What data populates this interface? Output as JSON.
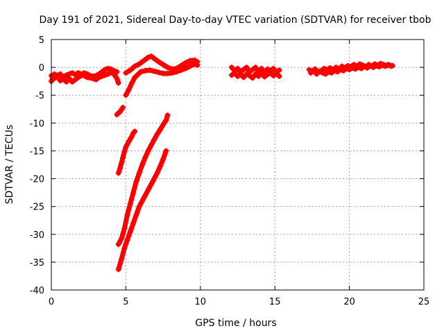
{
  "chart_data": {
    "type": "scatter",
    "title": "Day 191 of 2021, Sidereal Day-to-day VTEC variation (SDTVAR) for receiver tbob",
    "xlabel": "GPS time / hours",
    "ylabel": "SDTVAR / TECUs",
    "xlim": [
      0,
      25
    ],
    "ylim": [
      -40,
      5
    ],
    "xticks": [
      0,
      5,
      10,
      15,
      20,
      25
    ],
    "yticks": [
      5,
      0,
      -5,
      -10,
      -15,
      -20,
      -25,
      -30,
      -35,
      -40
    ],
    "grid": true,
    "marker": "plus",
    "series_color": "#ff0000",
    "series": [
      {
        "segments": [
          {
            "points": [
              [
                0.0,
                -1.5
              ],
              [
                0.2,
                -2.0
              ],
              [
                0.4,
                -1.4
              ],
              [
                0.6,
                -2.4
              ],
              [
                0.8,
                -1.6
              ],
              [
                1.0,
                -2.6
              ],
              [
                1.2,
                -2.0
              ],
              [
                1.4,
                -2.6
              ],
              [
                1.6,
                -2.2
              ],
              [
                1.8,
                -1.8
              ],
              [
                2.0,
                -1.5
              ],
              [
                2.2,
                -1.0
              ],
              [
                2.4,
                -1.2
              ],
              [
                2.6,
                -1.5
              ],
              [
                2.8,
                -1.6
              ],
              [
                3.0,
                -1.5
              ],
              [
                3.2,
                -1.2
              ],
              [
                3.4,
                -0.8
              ],
              [
                3.6,
                -0.4
              ],
              [
                3.8,
                -0.2
              ],
              [
                4.0,
                -0.3
              ],
              [
                4.2,
                -0.6
              ],
              [
                4.4,
                -0.8
              ]
            ]
          },
          {
            "points": [
              [
                0.0,
                -2.5
              ],
              [
                0.2,
                -1.2
              ],
              [
                0.4,
                -1.8
              ],
              [
                0.6,
                -1.2
              ],
              [
                0.8,
                -2.2
              ],
              [
                1.0,
                -1.4
              ],
              [
                1.2,
                -1.2
              ],
              [
                1.4,
                -1.0
              ],
              [
                1.6,
                -1.3
              ],
              [
                1.8,
                -1.0
              ],
              [
                2.0,
                -1.2
              ],
              [
                2.4,
                -1.8
              ],
              [
                2.8,
                -2.0
              ],
              [
                3.0,
                -2.2
              ],
              [
                3.2,
                -1.8
              ],
              [
                3.4,
                -1.6
              ],
              [
                3.6,
                -1.4
              ],
              [
                3.8,
                -1.2
              ],
              [
                4.0,
                -0.9
              ],
              [
                4.2,
                -1.2
              ],
              [
                4.4,
                -2.0
              ],
              [
                4.5,
                -2.8
              ]
            ]
          },
          {
            "points": [
              [
                5.0,
                -1.0
              ],
              [
                5.3,
                -0.5
              ],
              [
                5.6,
                0.2
              ],
              [
                5.9,
                0.6
              ],
              [
                6.2,
                1.2
              ],
              [
                6.5,
                1.8
              ],
              [
                6.7,
                2.0
              ],
              [
                6.9,
                1.6
              ],
              [
                7.2,
                1.0
              ],
              [
                7.5,
                0.5
              ],
              [
                7.8,
                0.0
              ],
              [
                8.1,
                -0.3
              ],
              [
                8.4,
                -0.2
              ],
              [
                8.7,
                0.3
              ],
              [
                9.0,
                0.8
              ],
              [
                9.3,
                1.2
              ],
              [
                9.6,
                1.3
              ],
              [
                9.8,
                1.0
              ]
            ]
          },
          {
            "points": [
              [
                5.0,
                -5.0
              ],
              [
                5.2,
                -4.0
              ],
              [
                5.4,
                -2.8
              ],
              [
                5.6,
                -1.8
              ],
              [
                5.8,
                -1.3
              ],
              [
                6.0,
                -0.8
              ],
              [
                6.3,
                -0.6
              ],
              [
                6.6,
                -0.5
              ],
              [
                6.9,
                -0.7
              ],
              [
                7.2,
                -0.9
              ],
              [
                7.5,
                -1.1
              ],
              [
                7.8,
                -1.1
              ],
              [
                8.1,
                -1.0
              ],
              [
                8.4,
                -0.8
              ],
              [
                8.7,
                -0.5
              ],
              [
                9.0,
                -0.2
              ],
              [
                9.3,
                0.2
              ],
              [
                9.6,
                0.6
              ],
              [
                9.8,
                0.4
              ]
            ]
          },
          {
            "points": [
              [
                4.4,
                -8.5
              ],
              [
                4.5,
                -8.2
              ],
              [
                4.6,
                -8.0
              ],
              [
                4.7,
                -7.6
              ],
              [
                4.8,
                -7.2
              ]
            ]
          },
          {
            "points": [
              [
                4.5,
                -19.0
              ],
              [
                4.6,
                -18.2
              ],
              [
                4.7,
                -17.2
              ],
              [
                4.8,
                -16.2
              ],
              [
                4.9,
                -15.2
              ],
              [
                5.0,
                -14.3
              ],
              [
                5.2,
                -13.3
              ],
              [
                5.4,
                -12.4
              ],
              [
                5.5,
                -11.8
              ],
              [
                5.6,
                -11.5
              ]
            ]
          },
          {
            "points": [
              [
                4.5,
                -31.8
              ],
              [
                4.7,
                -30.8
              ],
              [
                4.9,
                -29.0
              ],
              [
                5.1,
                -26.5
              ],
              [
                5.3,
                -24.5
              ],
              [
                5.5,
                -22.5
              ],
              [
                5.7,
                -20.5
              ],
              [
                5.9,
                -19.0
              ],
              [
                6.1,
                -17.5
              ],
              [
                6.3,
                -16.2
              ],
              [
                6.5,
                -15.0
              ],
              [
                6.7,
                -14.0
              ],
              [
                6.9,
                -13.0
              ],
              [
                7.1,
                -12.0
              ],
              [
                7.3,
                -11.2
              ],
              [
                7.5,
                -10.3
              ],
              [
                7.7,
                -9.5
              ],
              [
                7.8,
                -8.6
              ]
            ]
          },
          {
            "points": [
              [
                4.5,
                -36.3
              ],
              [
                4.7,
                -34.5
              ],
              [
                4.9,
                -32.5
              ],
              [
                5.1,
                -31.0
              ],
              [
                5.3,
                -29.5
              ],
              [
                5.5,
                -28.0
              ],
              [
                5.7,
                -26.5
              ],
              [
                5.9,
                -25.0
              ],
              [
                6.1,
                -24.0
              ],
              [
                6.3,
                -23.0
              ],
              [
                6.5,
                -22.0
              ],
              [
                6.7,
                -21.0
              ],
              [
                6.9,
                -20.0
              ],
              [
                7.1,
                -19.0
              ],
              [
                7.3,
                -17.8
              ],
              [
                7.5,
                -16.5
              ],
              [
                7.7,
                -15.0
              ]
            ]
          },
          {
            "points": [
              [
                12.1,
                0.0
              ],
              [
                12.3,
                -0.6
              ],
              [
                12.5,
                -0.2
              ],
              [
                12.7,
                -0.8
              ],
              [
                12.9,
                -0.4
              ],
              [
                13.1,
                0.0
              ],
              [
                13.3,
                -0.8
              ],
              [
                13.5,
                -0.4
              ],
              [
                13.7,
                0.0
              ],
              [
                13.9,
                -0.7
              ],
              [
                14.1,
                -0.2
              ],
              [
                14.3,
                -1.0
              ],
              [
                14.5,
                -0.3
              ],
              [
                14.7,
                -0.6
              ],
              [
                14.9,
                -0.2
              ],
              [
                15.1,
                -0.8
              ],
              [
                15.3,
                -0.5
              ]
            ]
          },
          {
            "points": [
              [
                12.1,
                -1.4
              ],
              [
                12.3,
                -1.0
              ],
              [
                12.5,
                -1.6
              ],
              [
                12.7,
                -1.2
              ],
              [
                12.9,
                -1.8
              ],
              [
                13.1,
                -1.2
              ],
              [
                13.3,
                -1.5
              ],
              [
                13.5,
                -1.9
              ],
              [
                13.7,
                -1.2
              ],
              [
                13.9,
                -1.6
              ],
              [
                14.1,
                -1.0
              ],
              [
                14.3,
                -1.7
              ],
              [
                14.5,
                -1.3
              ],
              [
                14.7,
                -1.0
              ],
              [
                14.9,
                -1.5
              ],
              [
                15.1,
                -1.1
              ],
              [
                15.3,
                -1.6
              ]
            ]
          },
          {
            "points": [
              [
                17.3,
                -0.4
              ],
              [
                17.5,
                -0.8
              ],
              [
                17.7,
                -0.3
              ],
              [
                17.9,
                -0.9
              ],
              [
                18.1,
                -0.6
              ],
              [
                18.3,
                -0.2
              ],
              [
                18.5,
                -0.5
              ],
              [
                18.7,
                -0.1
              ],
              [
                18.9,
                -0.4
              ],
              [
                19.1,
                0.0
              ],
              [
                19.3,
                -0.3
              ],
              [
                19.5,
                0.2
              ],
              [
                19.7,
                -0.1
              ],
              [
                19.9,
                0.3
              ],
              [
                20.1,
                0.1
              ],
              [
                20.3,
                0.5
              ],
              [
                20.5,
                0.2
              ],
              [
                20.7,
                0.6
              ],
              [
                20.9,
                0.4
              ],
              [
                21.1,
                0.1
              ],
              [
                21.3,
                0.5
              ],
              [
                21.5,
                0.2
              ],
              [
                21.7,
                0.6
              ],
              [
                21.9,
                0.4
              ],
              [
                22.1,
                0.7
              ],
              [
                22.3,
                0.5
              ],
              [
                22.5,
                0.3
              ],
              [
                22.7,
                0.4
              ],
              [
                22.9,
                0.3
              ]
            ]
          },
          {
            "points": [
              [
                17.4,
                -1.0
              ],
              [
                17.6,
                -0.5
              ],
              [
                17.8,
                -1.2
              ],
              [
                18.0,
                -0.7
              ],
              [
                18.2,
                -1.0
              ],
              [
                18.4,
                -1.2
              ],
              [
                18.6,
                -0.8
              ],
              [
                18.8,
                -1.0
              ],
              [
                19.0,
                -0.6
              ],
              [
                19.2,
                -0.8
              ],
              [
                19.4,
                -0.4
              ],
              [
                19.6,
                -0.6
              ],
              [
                19.8,
                -0.2
              ],
              [
                20.0,
                -0.4
              ],
              [
                20.2,
                -0.1
              ],
              [
                20.4,
                -0.3
              ],
              [
                20.6,
                0.0
              ],
              [
                20.8,
                -0.2
              ],
              [
                21.0,
                0.2
              ],
              [
                21.2,
                -0.1
              ],
              [
                21.4,
                0.3
              ],
              [
                21.6,
                0.0
              ],
              [
                21.8,
                0.3
              ],
              [
                22.0,
                0.1
              ],
              [
                22.2,
                0.4
              ],
              [
                22.4,
                0.2
              ],
              [
                22.6,
                0.5
              ],
              [
                22.8,
                0.2
              ]
            ]
          }
        ]
      }
    ]
  }
}
